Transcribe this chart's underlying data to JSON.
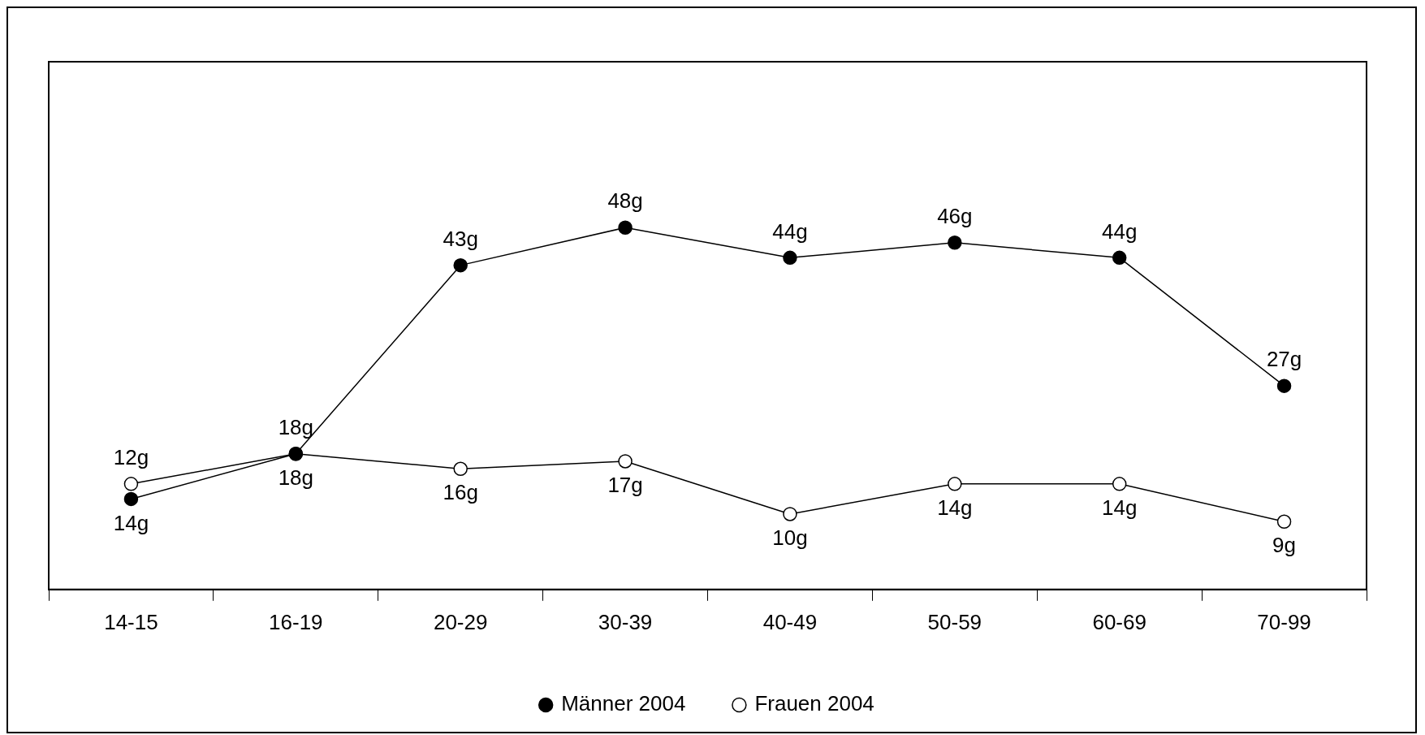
{
  "chart_data": {
    "type": "line",
    "categories": [
      "14-15",
      "16-19",
      "20-29",
      "30-39",
      "40-49",
      "50-59",
      "60-69",
      "70-99"
    ],
    "series": [
      {
        "name": "Männer 2004",
        "color": "#000000",
        "values": [
          12,
          18,
          43,
          48,
          44,
          46,
          44,
          27
        ],
        "value_labels": [
          "12g",
          "18g",
          "43g",
          "48g",
          "44g",
          "46g",
          "44g",
          "27g"
        ]
      },
      {
        "name": "Frauen 2004",
        "color": "#000000",
        "values": [
          14,
          18,
          16,
          17,
          10,
          14,
          14,
          9
        ],
        "value_labels": [
          "14g",
          "18g",
          "16g",
          "17g",
          "10g",
          "14g",
          "14g",
          "9g"
        ]
      }
    ],
    "ylim": [
      0,
      70
    ],
    "tick_labels": "x",
    "grid": false,
    "legend": "bottom",
    "marker": "circle",
    "line_style": "solid"
  }
}
